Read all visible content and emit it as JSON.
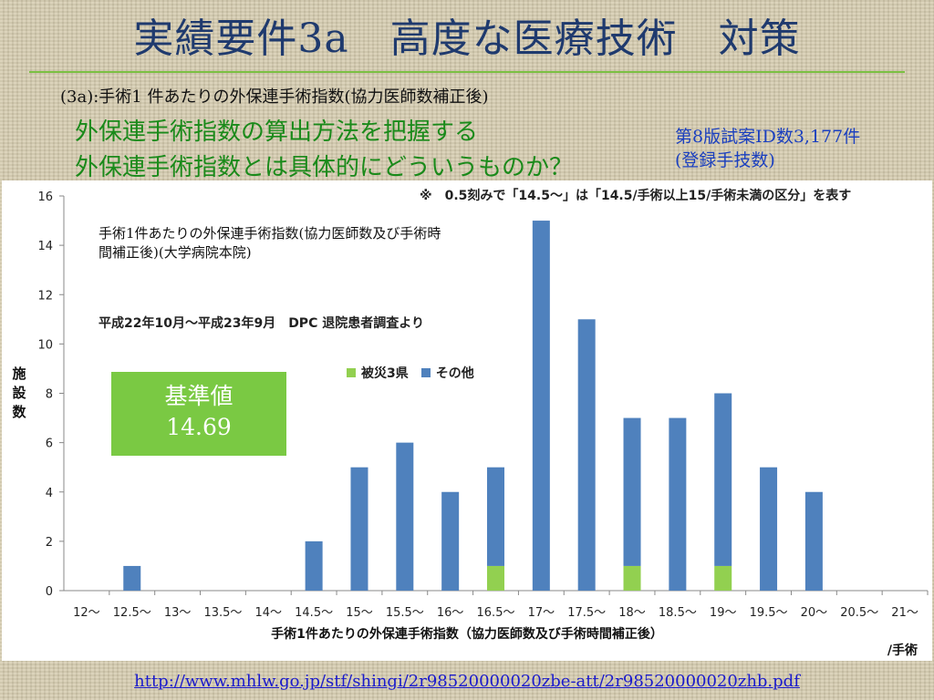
{
  "slide": {
    "title": "実績要件3a　高度な医療技術　対策",
    "subtitle": "(3a):手術1 件あたりの外保連手術指数(協力医師数補正後)",
    "heading_1": "外保連手術指数の算出方法を把握する",
    "heading_2": "外保連手術指数とは具体的にどういうものか？",
    "side_note_1": "第8版試案ID数3,177件",
    "side_note_2": "(登録手技数)",
    "link": "http://www.mhlw.go.jp/stf/shingi/2r98520000020zbe-att/2r98520000020zhb.pdf"
  },
  "chart": {
    "note_top": "※　0.5刻みで「14.5～」は「14.5/手術以上15/手術未満の区分」を表す",
    "annotation_1": "手術1件あたりの外保連手術指数(協力医師数及び手術時間補正後)(大学病院本院)",
    "annotation_2": "平成22年10月～平成23年9月　DPC 退院患者調査より",
    "kijun_label": "基準値",
    "kijun_value": "14.69",
    "ylabel": "施設数",
    "xlabel": "手術1件あたりの外保連手術指数（協力医師数及び手術時間補正後）",
    "unit": "/手術"
  },
  "chart_data": {
    "type": "bar",
    "stacked": true,
    "categories": [
      "12～",
      "12.5～",
      "13～",
      "13.5～",
      "14～",
      "14.5～",
      "15～",
      "15.5～",
      "16～",
      "16.5～",
      "17～",
      "17.5～",
      "18～",
      "18.5～",
      "19～",
      "19.5～",
      "20～",
      "20.5～",
      "21～"
    ],
    "series": [
      {
        "name": "被災3県",
        "color": "#92d050",
        "values": [
          0,
          0,
          0,
          0,
          0,
          0,
          0,
          0,
          0,
          1,
          0,
          0,
          1,
          0,
          1,
          0,
          0,
          0,
          0
        ]
      },
      {
        "name": "その他",
        "color": "#4f81bd",
        "values": [
          0,
          1,
          0,
          0,
          0,
          2,
          5,
          6,
          4,
          4,
          15,
          11,
          6,
          7,
          7,
          5,
          4,
          0,
          0
        ]
      }
    ],
    "ylim": [
      0,
      16
    ],
    "yticks": [
      0,
      2,
      4,
      6,
      8,
      10,
      12,
      14,
      16
    ],
    "ylabel": "施設数",
    "xlabel": "手術1件あたりの外保連手術指数（協力医師数及び手術時間補正後）",
    "legend": "middle",
    "grid": false
  }
}
